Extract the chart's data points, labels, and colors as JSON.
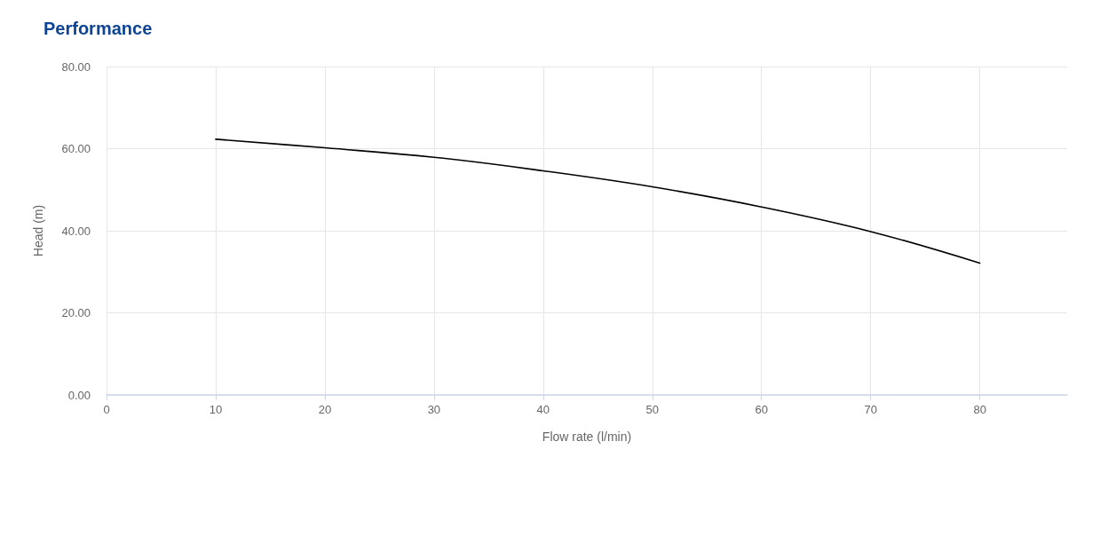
{
  "chart_data": {
    "type": "line",
    "title": "Performance",
    "xlabel": "Flow rate (l/min)",
    "ylabel": "Head (m)",
    "x": [
      10,
      20,
      30,
      40,
      50,
      60,
      70,
      80
    ],
    "series": [
      {
        "color": "#000000",
        "values": [
          62.3,
          60.2,
          57.9,
          54.6,
          50.7,
          45.8,
          39.8,
          32.1
        ]
      }
    ],
    "xlim": [
      0,
      88
    ],
    "xticks": [
      0,
      10,
      20,
      30,
      40,
      50,
      60,
      70,
      80
    ],
    "ylim": [
      0,
      80
    ],
    "yticks": [
      {
        "value": 0,
        "label": "0.00"
      },
      {
        "value": 20,
        "label": "20.00"
      },
      {
        "value": 40,
        "label": "40.00"
      },
      {
        "value": 60,
        "label": "60.00"
      },
      {
        "value": 80,
        "label": "80.00"
      }
    ],
    "grid": true,
    "marker": "none",
    "line_style": "solid"
  }
}
